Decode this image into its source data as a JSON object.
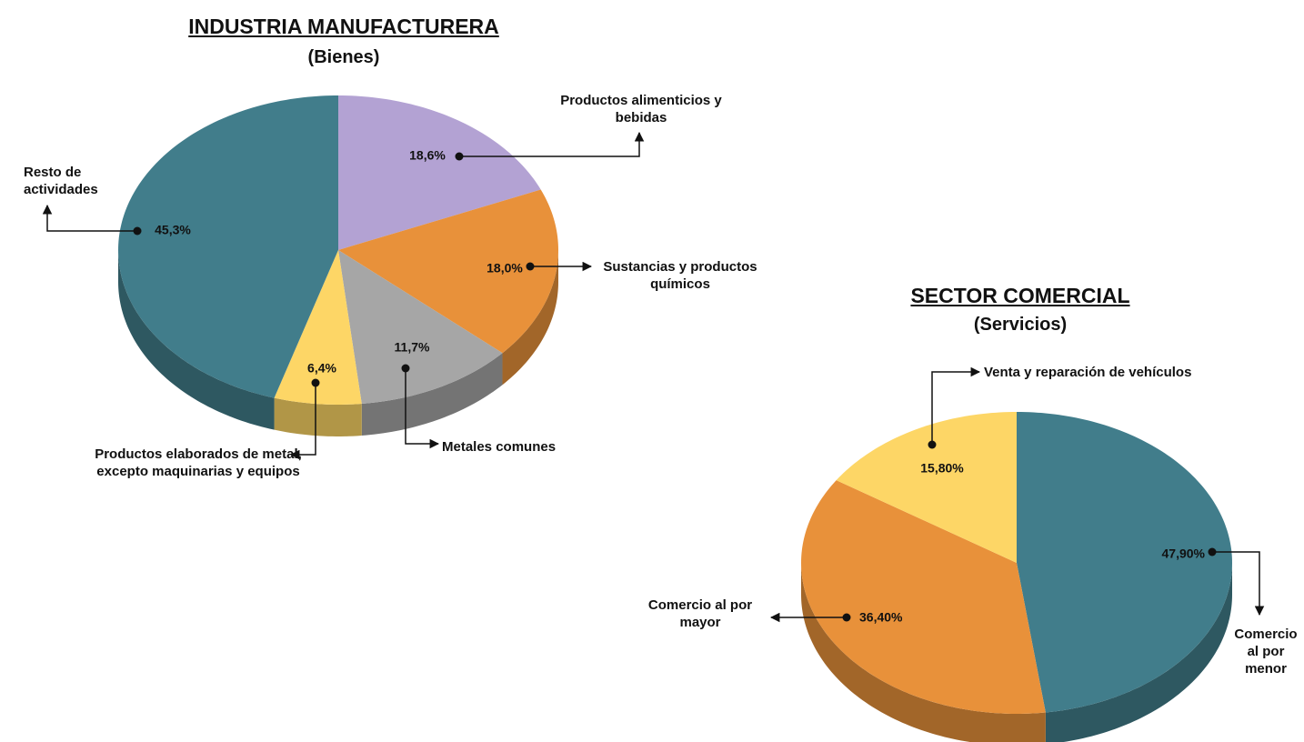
{
  "chart_data": [
    {
      "type": "pie",
      "title": "INDUSTRIA MANUFACTURERA",
      "subtitle": "(Bienes)",
      "categories": [
        "Productos alimenticios y bebidas",
        "Sustancias y productos químicos",
        "Metales comunes",
        "Productos elaborados de metal, excepto maquinarias y equipos",
        "Resto de actividades"
      ],
      "values": [
        18.6,
        18.0,
        11.7,
        6.4,
        45.3
      ],
      "value_labels": [
        "18,6%",
        "18,0%",
        "11,7%",
        "6,4%",
        "45,3%"
      ],
      "colors": [
        "#b3a2d3",
        "#e8913a",
        "#a6a6a6",
        "#fdd666",
        "#417d8b"
      ]
    },
    {
      "type": "pie",
      "title": "SECTOR COMERCIAL",
      "subtitle": "(Servicios)",
      "categories": [
        "Comercio al por menor",
        "Comercio al por mayor",
        "Venta y reparación de vehículos"
      ],
      "values": [
        47.9,
        36.4,
        15.8
      ],
      "value_labels": [
        "47,90%",
        "36,40%",
        "15,80%"
      ],
      "colors": [
        "#417d8b",
        "#e8913a",
        "#fdd666"
      ]
    }
  ]
}
